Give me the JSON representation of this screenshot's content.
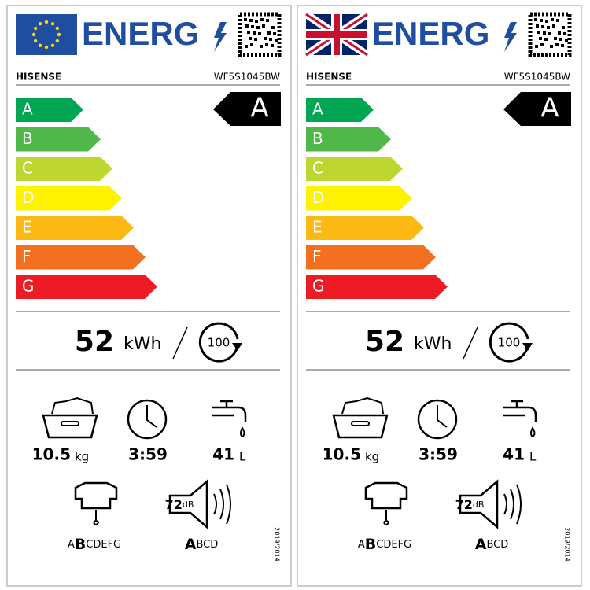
{
  "labels": [
    {
      "energy_word": "ENERG",
      "brand": "HISENSE",
      "model": "WF5S1045BW",
      "classes": [
        "A",
        "B",
        "C",
        "D",
        "E",
        "F",
        "G"
      ],
      "rating": "A",
      "energy": {
        "value": "52",
        "unit": "kWh",
        "cycles": "100"
      },
      "capacity": {
        "value": "10.5",
        "unit": "kg"
      },
      "duration": "3:59",
      "water": {
        "value": "41",
        "unit": "L"
      },
      "spin": {
        "before": "A",
        "selected": "B",
        "after": "CDEFG"
      },
      "noise": {
        "value": "72",
        "unit": "dB",
        "selected": "A",
        "after": "BCD"
      },
      "regulation": "2019/2014"
    },
    {
      "energy_word": "ENERG",
      "brand": "HISENSE",
      "model": "WF5S1045BW",
      "classes": [
        "A",
        "B",
        "C",
        "D",
        "E",
        "F",
        "G"
      ],
      "rating": "A",
      "energy": {
        "value": "52",
        "unit": "kWh",
        "cycles": "100"
      },
      "capacity": {
        "value": "10.5",
        "unit": "kg"
      },
      "duration": "3:59",
      "water": {
        "value": "41",
        "unit": "L"
      },
      "spin": {
        "before": "A",
        "selected": "B",
        "after": "CDEFG"
      },
      "noise": {
        "value": "72",
        "unit": "dB",
        "selected": "A",
        "after": "BCD"
      },
      "regulation": "2019/2014"
    }
  ]
}
